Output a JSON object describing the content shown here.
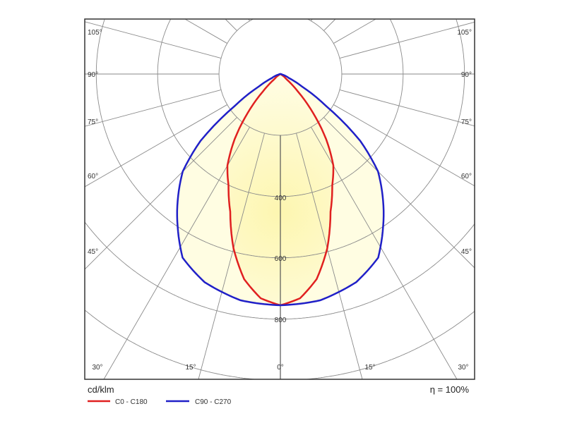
{
  "chart_data": {
    "type": "polar",
    "title": "",
    "unit_label": "cd/klm",
    "efficiency_label": "η = 100%",
    "radial_ticks": [
      200,
      400,
      600,
      800,
      1000,
      1200,
      1400
    ],
    "radial_tick_labels": [
      "400",
      "600",
      "800"
    ],
    "angle_labels_left": [
      "105°",
      "90°",
      "75°",
      "60°",
      "45°",
      "30°",
      "15°"
    ],
    "angle_labels_right": [
      "105°",
      "90°",
      "75°",
      "60°",
      "45°",
      "30°",
      "15°"
    ],
    "angle_label_bottom": "0°",
    "angle_step_deg": 15,
    "series": [
      {
        "name": "C0 - C180",
        "color": "#e02020",
        "angles": [
          0,
          5,
          10,
          15,
          20,
          25,
          30,
          35,
          40,
          45,
          50,
          60,
          90
        ],
        "values": [
          755,
          735,
          680,
          590,
          478,
          400,
          345,
          260,
          165,
          80,
          25,
          0,
          0
        ]
      },
      {
        "name": "C90 - C270",
        "color": "#2020c8",
        "angles": [
          0,
          10,
          20,
          28,
          37,
          45,
          50,
          55,
          60,
          65,
          75,
          90
        ],
        "values": [
          755,
          750,
          723,
          679,
          559,
          450,
          340,
          182,
          80,
          30,
          5,
          0
        ]
      }
    ],
    "fill_color": "#fffbd0"
  }
}
